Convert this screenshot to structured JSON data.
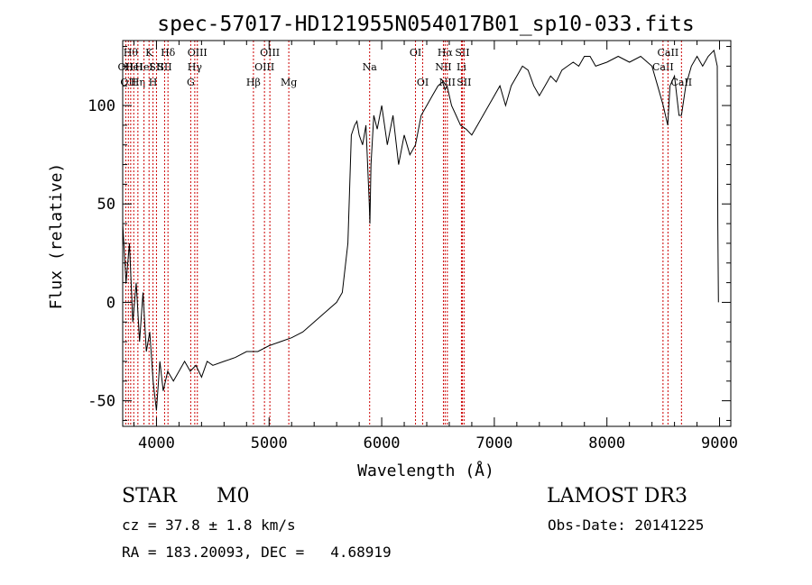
{
  "header": {
    "title": "spec-57017-HD121955N054017B01_sp10-033.fits"
  },
  "info": {
    "object_class": "STAR",
    "subclass": "M0",
    "survey": "LAMOST DR3",
    "cz": "cz = 37.8 ± 1.8 km/s",
    "obs_date": "Obs-Date: 20141225",
    "coords": "RA = 183.20093, DEC =   4.68919"
  },
  "chart_data": {
    "type": "line",
    "title": "spec-57017-HD121955N054017B01_sp10-033.fits",
    "xlabel": "Wavelength (Å)",
    "ylabel": "Flux (relative)",
    "xlim": [
      3700,
      9100
    ],
    "ylim": [
      -63,
      133
    ],
    "x_ticks": [
      4000,
      5000,
      6000,
      7000,
      8000,
      9000
    ],
    "y_ticks": [
      -50,
      0,
      50,
      100
    ],
    "grid": false,
    "line_color": "#000000",
    "marker_color": "#cc0000",
    "series": [
      {
        "x": [
          3700,
          3730,
          3760,
          3790,
          3820,
          3850,
          3880,
          3910,
          3940,
          3970,
          4000,
          4030,
          4060,
          4100,
          4150,
          4200,
          4250,
          4300,
          4350,
          4400,
          4450,
          4500,
          4600,
          4700,
          4800,
          4900,
          5000,
          5100,
          5200,
          5300,
          5400,
          5500,
          5600,
          5650,
          5700,
          5730,
          5760,
          5780,
          5800,
          5830,
          5860,
          5890,
          5895,
          5905,
          5930,
          5960,
          6000,
          6050,
          6100,
          6150,
          6200,
          6250,
          6300,
          6350,
          6400,
          6450,
          6500,
          6540,
          6563,
          6580,
          6620,
          6660,
          6700,
          6750,
          6800,
          6850,
          6900,
          6950,
          7000,
          7050,
          7100,
          7150,
          7200,
          7250,
          7300,
          7350,
          7400,
          7450,
          7500,
          7550,
          7600,
          7650,
          7700,
          7750,
          7800,
          7850,
          7900,
          8000,
          8100,
          8200,
          8300,
          8400,
          8450,
          8500,
          8540,
          8560,
          8600,
          8640,
          8662,
          8700,
          8750,
          8800,
          8850,
          8900,
          8950,
          8980,
          8985,
          8990
        ],
        "y": [
          40,
          10,
          30,
          -10,
          10,
          -20,
          5,
          -25,
          -15,
          -40,
          -55,
          -30,
          -45,
          -35,
          -40,
          -35,
          -30,
          -35,
          -32,
          -38,
          -30,
          -32,
          -30,
          -28,
          -25,
          -25,
          -22,
          -20,
          -18,
          -15,
          -10,
          -5,
          0,
          5,
          30,
          85,
          90,
          92,
          85,
          80,
          90,
          50,
          40,
          70,
          95,
          88,
          100,
          80,
          95,
          70,
          85,
          75,
          80,
          95,
          100,
          105,
          110,
          112,
          108,
          110,
          100,
          95,
          90,
          88,
          85,
          90,
          95,
          100,
          105,
          110,
          100,
          110,
          115,
          120,
          118,
          110,
          105,
          110,
          115,
          112,
          118,
          120,
          122,
          120,
          125,
          125,
          120,
          122,
          125,
          122,
          125,
          120,
          110,
          100,
          90,
          110,
          115,
          95,
          95,
          110,
          120,
          125,
          120,
          125,
          128,
          120,
          40,
          0
        ]
      }
    ],
    "line_markers": [
      {
        "wavelength": 3727,
        "label": "OII",
        "row": 2
      },
      {
        "wavelength": 3750,
        "label": "OII",
        "row": 3
      },
      {
        "wavelength": 3771,
        "label": "Hθ",
        "row": 1
      },
      {
        "wavelength": 3798,
        "label": "HeI",
        "row": 2
      },
      {
        "wavelength": 3835,
        "label": "Hη",
        "row": 3
      },
      {
        "wavelength": 3889,
        "label": "HeI",
        "row": 2
      },
      {
        "wavelength": 3934,
        "label": "K",
        "row": 1
      },
      {
        "wavelength": 3969,
        "label": "H",
        "row": 3
      },
      {
        "wavelength": 4000,
        "label": "SII",
        "row": 2
      },
      {
        "wavelength": 4102,
        "label": "Hδ",
        "row": 1
      },
      {
        "wavelength": 4072,
        "label": "SII",
        "row": 2
      },
      {
        "wavelength": 4304,
        "label": "G",
        "row": 3
      },
      {
        "wavelength": 4340,
        "label": "Hγ",
        "row": 2
      },
      {
        "wavelength": 4363,
        "label": "OIII",
        "row": 1
      },
      {
        "wavelength": 4861,
        "label": "Hβ",
        "row": 3
      },
      {
        "wavelength": 4959,
        "label": "OIII",
        "row": 2
      },
      {
        "wavelength": 5007,
        "label": "OIII",
        "row": 1
      },
      {
        "wavelength": 5175,
        "label": "Mg",
        "row": 3
      },
      {
        "wavelength": 5893,
        "label": "Na",
        "row": 2
      },
      {
        "wavelength": 6300,
        "label": "OI",
        "row": 1
      },
      {
        "wavelength": 6364,
        "label": "OI",
        "row": 3
      },
      {
        "wavelength": 6548,
        "label": "NII",
        "row": 2
      },
      {
        "wavelength": 6563,
        "label": "Hα",
        "row": 1
      },
      {
        "wavelength": 6583,
        "label": "NII",
        "row": 3
      },
      {
        "wavelength": 6708,
        "label": "Li",
        "row": 2
      },
      {
        "wavelength": 6716,
        "label": "SII",
        "row": 1
      },
      {
        "wavelength": 6731,
        "label": "SII",
        "row": 3
      },
      {
        "wavelength": 8498,
        "label": "CaII",
        "row": 2
      },
      {
        "wavelength": 8542,
        "label": "CaII",
        "row": 1
      },
      {
        "wavelength": 8662,
        "label": "CaII",
        "row": 3
      }
    ]
  }
}
